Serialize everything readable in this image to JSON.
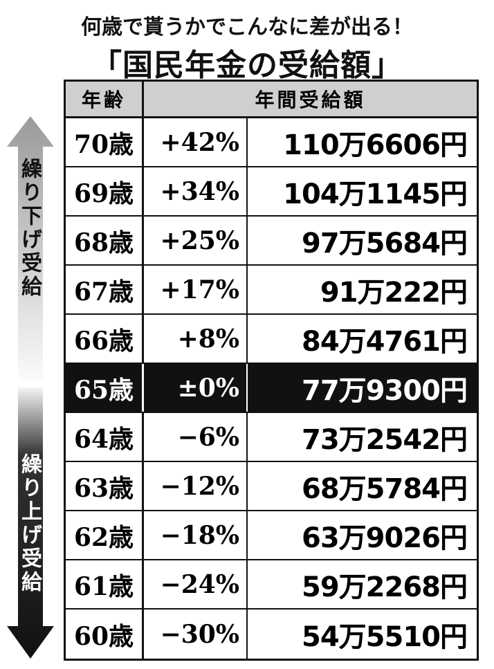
{
  "title": {
    "line1": "何歳で貰うかでこんなに差が出る！",
    "line2": "「国民年金の受給額」"
  },
  "side_labels": {
    "deferred": "繰り下げ受給",
    "early": "繰り上げ受給"
  },
  "table": {
    "header": [
      "年齢",
      "年間受給額"
    ],
    "rows": [
      [
        "70歳",
        "+42%",
        "110万6606円"
      ],
      [
        "69歳",
        "+34%",
        "104万1145円"
      ],
      [
        "68歳",
        "+25%",
        "97万5684円"
      ],
      [
        "67歳",
        "+17%",
        "91万222円"
      ],
      [
        "66歳",
        "+8%",
        "84万4761円"
      ],
      [
        "65歳",
        "±0%",
        "77万9300円"
      ],
      [
        "64歳",
        "−6%",
        "73万2542円"
      ],
      [
        "63歳",
        "−12%",
        "68万5784円"
      ],
      [
        "62歳",
        "−18%",
        "63万9026円"
      ],
      [
        "61歳",
        "−24%",
        "59万2268円"
      ],
      [
        "60歳",
        "−30%",
        "54万5510円"
      ]
    ]
  }
}
